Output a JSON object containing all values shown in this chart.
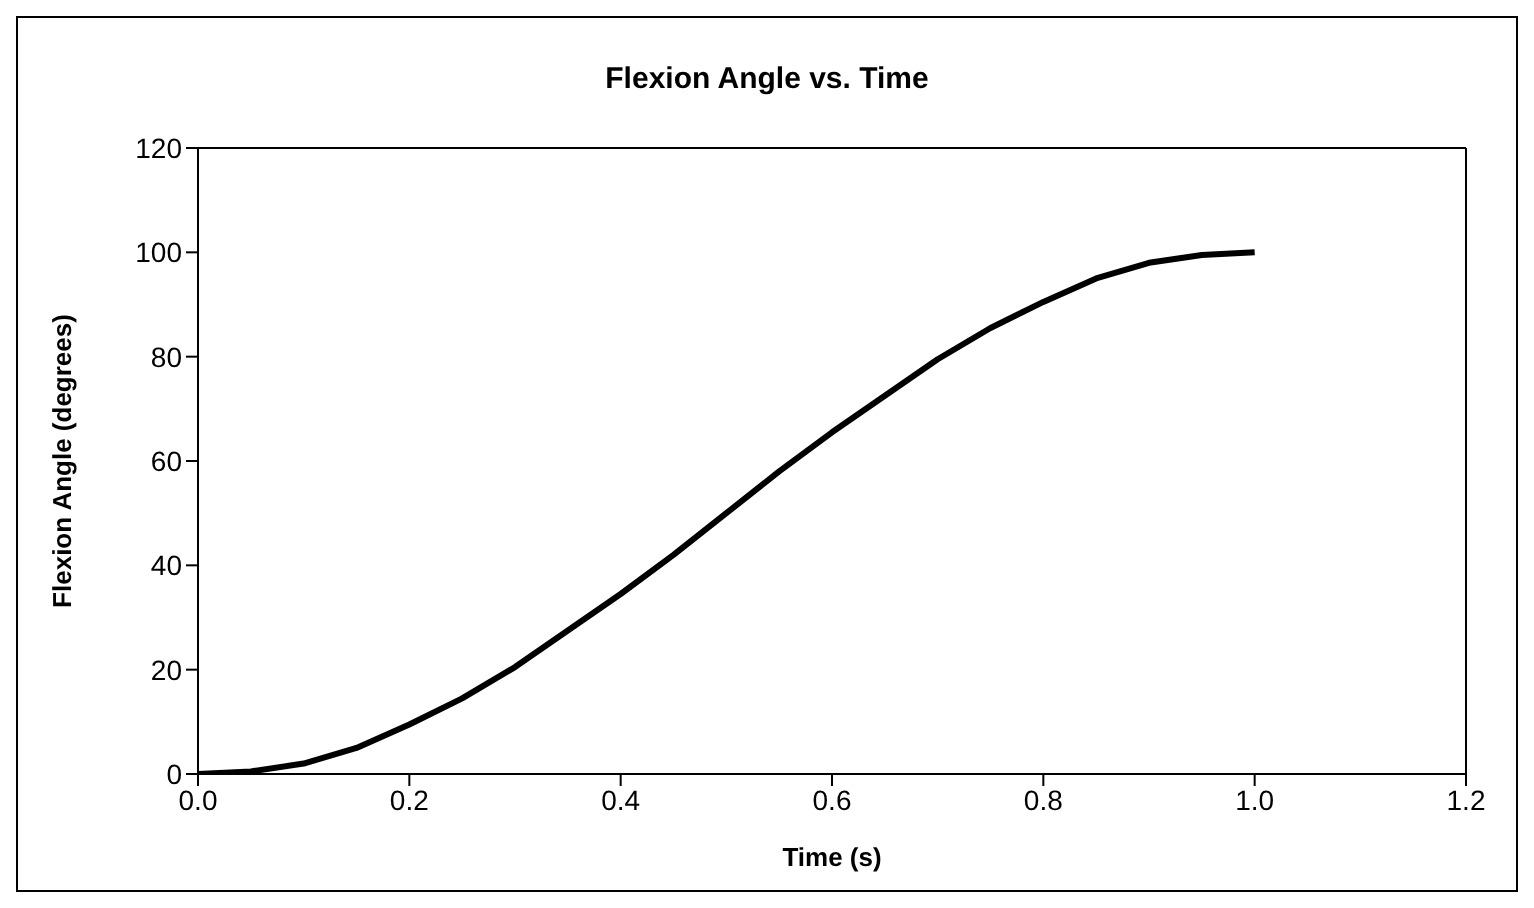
{
  "chart_data": {
    "type": "line",
    "title": "Flexion Angle vs. Time",
    "xlabel": "Time (s)",
    "ylabel": "Flexion Angle (degrees)",
    "x": [
      0,
      0.05,
      0.1,
      0.15,
      0.2,
      0.25,
      0.3,
      0.35,
      0.4,
      0.45,
      0.5,
      0.55,
      0.6,
      0.65,
      0.7,
      0.75,
      0.8,
      0.85,
      0.9,
      0.95,
      1.0
    ],
    "series": [
      {
        "color": "#000000",
        "values": [
          0,
          0.5,
          2,
          5,
          9.5,
          14.5,
          20.5,
          27.5,
          34.5,
          42,
          50,
          58,
          65.5,
          72.5,
          79.5,
          85.5,
          90.5,
          95,
          98,
          99.5,
          100
        ]
      }
    ],
    "xlim": [
      0,
      1.2
    ],
    "xticks": [
      {
        "value": 0,
        "label": "0.0"
      },
      {
        "value": 0.2,
        "label": "0.2"
      },
      {
        "value": 0.4,
        "label": "0.4"
      },
      {
        "value": 0.6,
        "label": "0.6"
      },
      {
        "value": 0.8,
        "label": "0.8"
      },
      {
        "value": 1.0,
        "label": "1.0"
      },
      {
        "value": 1.2,
        "label": "1.2"
      }
    ],
    "ylim": [
      0,
      120
    ],
    "yticks": [
      0,
      20,
      40,
      60,
      80,
      100,
      120
    ],
    "grid": false,
    "marker": "none",
    "line_style": "solid"
  }
}
